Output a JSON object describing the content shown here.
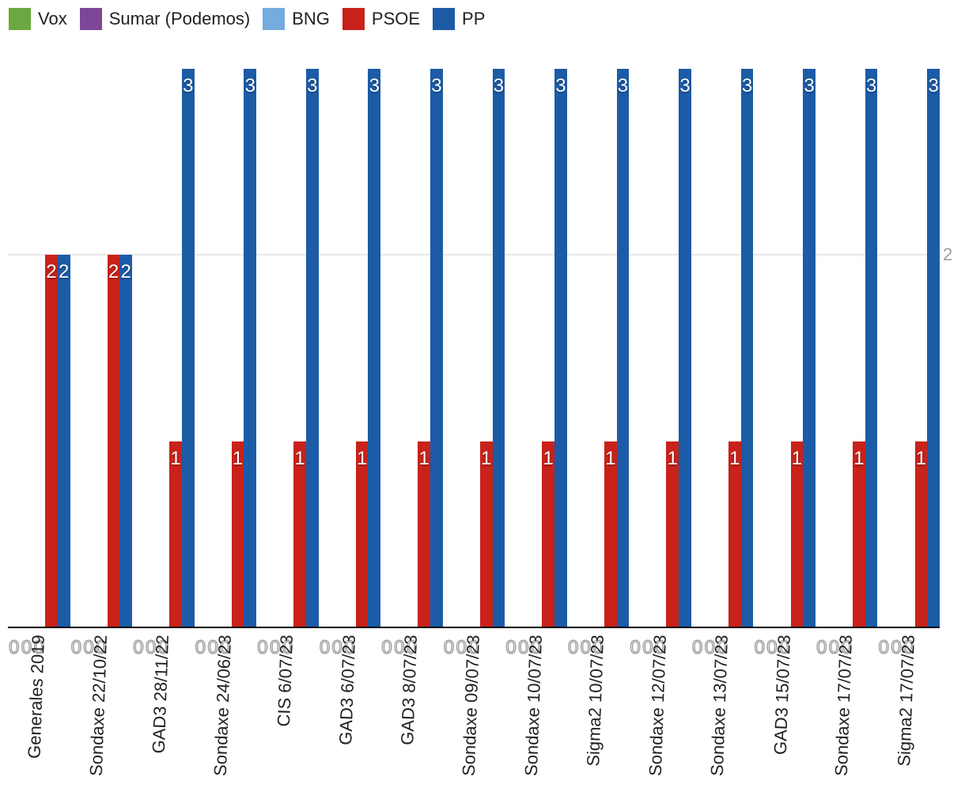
{
  "legend": {
    "items": [
      {
        "label": "Vox",
        "color": "#6BA83F"
      },
      {
        "label": "Sumar (Podemos)",
        "color": "#7E4696"
      },
      {
        "label": "BNG",
        "color": "#76ABDF"
      },
      {
        "label": "PSOE",
        "color": "#C8221A"
      },
      {
        "label": "PP",
        "color": "#1C5BA6"
      }
    ]
  },
  "chart_data": {
    "type": "bar",
    "title": "",
    "xlabel": "",
    "ylabel": "",
    "ylim": [
      0,
      3
    ],
    "grid_values": [
      2
    ],
    "ytick_labels": [
      "2"
    ],
    "legend_position": "top",
    "categories": [
      "Generales 2019",
      "Sondaxe 22/10/22",
      "GAD3 28/11/22",
      "Sondaxe 24/06/23",
      "CIS 6/07/23",
      "GAD3 6/07/23",
      "GAD3 8/07/23",
      "Sondaxe 09/07/23",
      "Sondaxe 10/07/23",
      "Sigma2 10/07/23",
      "Sondaxe 12/07/23",
      "Sondaxe 13/07/23",
      "GAD3 15/07/23",
      "Sondaxe 17/07/23",
      "Sigma2 17/07/23"
    ],
    "series": [
      {
        "name": "Vox",
        "color": "#6BA83F",
        "values": [
          0,
          0,
          0,
          0,
          0,
          0,
          0,
          0,
          0,
          0,
          0,
          0,
          0,
          0,
          0
        ]
      },
      {
        "name": "Sumar (Podemos)",
        "color": "#7E4696",
        "values": [
          0,
          0,
          0,
          0,
          0,
          0,
          0,
          0,
          0,
          0,
          0,
          0,
          0,
          0,
          0
        ]
      },
      {
        "name": "BNG",
        "color": "#76ABDF",
        "values": [
          0,
          0,
          0,
          0,
          0,
          0,
          0,
          0,
          0,
          0,
          0,
          0,
          0,
          0,
          0
        ]
      },
      {
        "name": "PSOE",
        "color": "#C8221A",
        "values": [
          2,
          2,
          1,
          1,
          1,
          1,
          1,
          1,
          1,
          1,
          1,
          1,
          1,
          1,
          1
        ]
      },
      {
        "name": "PP",
        "color": "#1C5BA6",
        "values": [
          2,
          2,
          3,
          3,
          3,
          3,
          3,
          3,
          3,
          3,
          3,
          3,
          3,
          3,
          3
        ]
      }
    ]
  }
}
